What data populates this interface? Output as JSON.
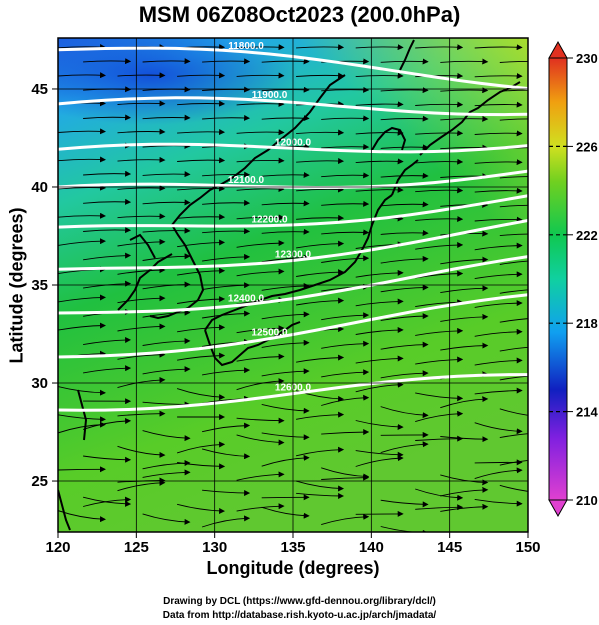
{
  "title": "MSM 06Z08Oct2023 (200.0hPa)",
  "axes": {
    "xlabel": "Longitude (degrees)",
    "ylabel": "Latitude  (degrees)",
    "xlim": [
      120,
      150
    ],
    "ylim": [
      22.4,
      47.6
    ],
    "xticks": [
      "120",
      "125",
      "130",
      "135",
      "140",
      "145",
      "150"
    ],
    "yticks": [
      "25",
      "30",
      "35",
      "40",
      "45"
    ]
  },
  "colorbar": {
    "min": 210,
    "max": 230,
    "labels": [
      "230",
      "226",
      "222",
      "218",
      "214",
      "210"
    ],
    "colors": [
      "#e040d0",
      "#1020c0",
      "#00b8f0",
      "#10c860",
      "#40d020",
      "#b8e020",
      "#f0a010",
      "#e03020"
    ]
  },
  "contours": [
    {
      "label": "11800.0",
      "lat_west": 47.0,
      "lat_east": 45.5
    },
    {
      "label": "11900.0",
      "lat_west": 44.0,
      "lat_east": 44.2
    },
    {
      "label": "12000.0",
      "lat_west": 41.5,
      "lat_east": 42.5
    },
    {
      "label": "12100.0",
      "lat_west": 39.5,
      "lat_east": 41.0
    },
    {
      "label": "12200.0",
      "lat_west": 37.5,
      "lat_east": 39.5
    },
    {
      "label": "12300.0",
      "lat_west": 35.5,
      "lat_east": 38.0
    },
    {
      "label": "12400.0",
      "lat_west": 33.5,
      "lat_east": 36.0
    },
    {
      "label": "12500.0",
      "lat_west": 31.5,
      "lat_east": 34.0
    },
    {
      "label": "12600.0",
      "lat_west": 29.0,
      "lat_east": 30.0
    }
  ],
  "credits": {
    "line1": "Drawing by DCL (https://www.gfd-dennou.org/library/dcl/)",
    "line2": "Data from http://database.rish.kyoto-u.ac.jp/arch/jmadata/"
  }
}
